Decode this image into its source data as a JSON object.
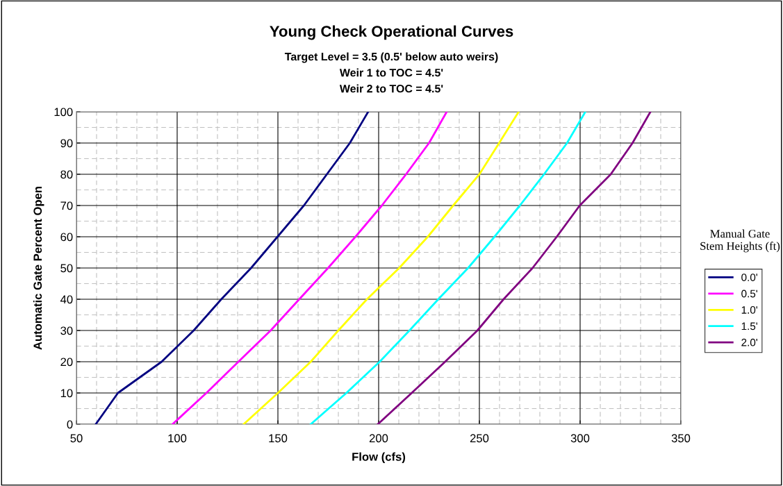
{
  "chart_data": {
    "type": "line",
    "title": "Young Check Operational Curves",
    "subtitle": "Target Level = 3.5 (0.5' below auto weirs)\nWeir 1 to TOC = 4.5'\nWeir 2 to TOC = 4.5'",
    "xlabel": "Flow (cfs)",
    "ylabel": "Automatic Gate Percent Open",
    "legend_title": "Manual Gate\nStem Heights (ft)",
    "legend": "right",
    "grid": true,
    "xlim": [
      50,
      350
    ],
    "xticks": [
      50,
      100,
      150,
      200,
      250,
      300,
      350
    ],
    "ylim": [
      0,
      100
    ],
    "yticks": [
      0,
      10,
      20,
      30,
      40,
      50,
      60,
      70,
      80,
      90,
      100
    ],
    "series": [
      {
        "name": "0.0'",
        "color": "#000080",
        "x": [
          59.6,
          70.6,
          92.3,
          108.2,
          121.9,
          136.7,
          149.8,
          162.9,
          174.3,
          185.7,
          194.8
        ],
        "values": [
          0,
          10,
          20,
          30,
          40,
          50,
          60,
          70,
          80,
          90,
          100
        ]
      },
      {
        "name": "0.5'",
        "color": "#ff00ff",
        "x": [
          97.7,
          114.5,
          130.4,
          146.4,
          160.6,
          174.9,
          188.5,
          201.6,
          213.6,
          225,
          233.8
        ],
        "values": [
          0,
          10,
          20,
          30,
          40,
          50,
          60,
          70,
          80,
          90,
          100
        ]
      },
      {
        "name": "1.0'",
        "color": "#ffff00",
        "x": [
          133,
          150,
          166.3,
          180,
          194.2,
          210.2,
          224.4,
          237,
          250,
          259.8,
          269.5
        ],
        "values": [
          0,
          10,
          20,
          30,
          40,
          50,
          60,
          70,
          80,
          90,
          100
        ]
      },
      {
        "name": "1.5'",
        "color": "#00ffff",
        "x": [
          166.3,
          184,
          200.5,
          215.3,
          229.6,
          244.4,
          257.5,
          270.1,
          282.1,
          293.5,
          302.6
        ],
        "values": [
          0,
          10,
          20,
          30,
          40,
          50,
          60,
          70,
          80,
          90,
          100
        ]
      },
      {
        "name": "2.0'",
        "color": "#800080",
        "x": [
          199.6,
          216.4,
          233,
          249,
          262,
          276.4,
          288.4,
          299.8,
          315.2,
          326,
          334.9
        ],
        "values": [
          0,
          10,
          20,
          30,
          40,
          50,
          60,
          70,
          80,
          90,
          100
        ]
      }
    ]
  }
}
